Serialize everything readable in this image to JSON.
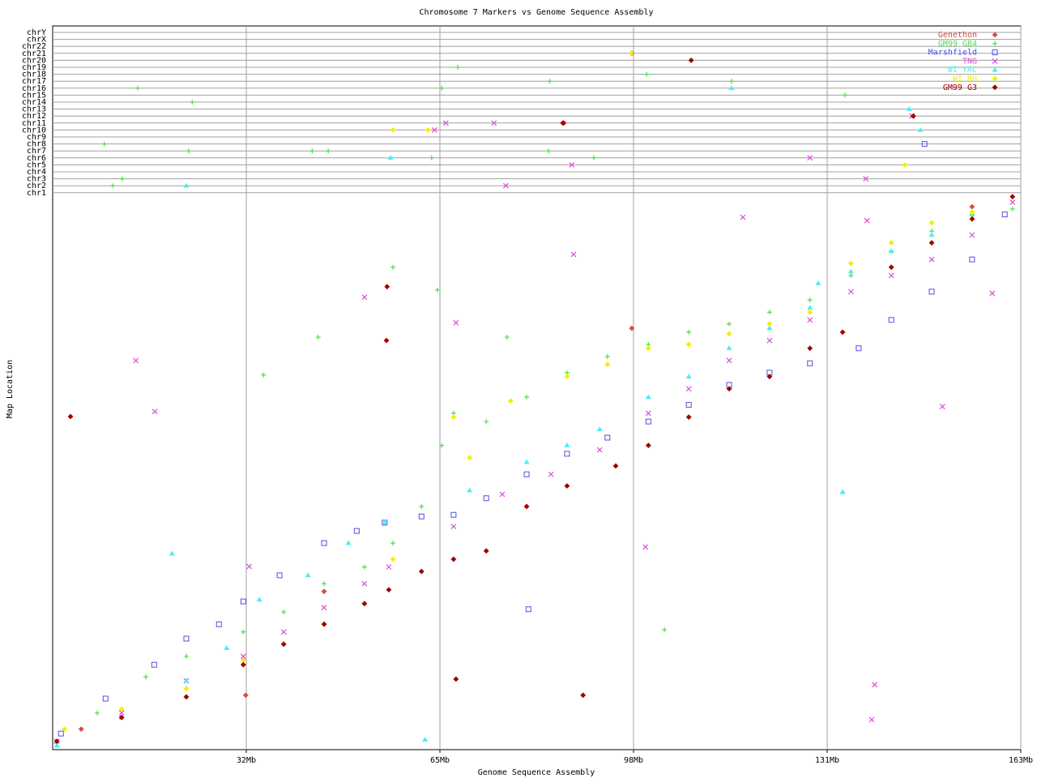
{
  "chart_data": {
    "type": "scatter",
    "title": "Chromosome 7 Markers vs Genome Sequence Assembly",
    "x_label": "Genome Sequence Assembly",
    "y_label": "Map Location",
    "xlim": [
      0,
      163
    ],
    "xticks": [
      {
        "value": 32.6,
        "label": "32Mb"
      },
      {
        "value": 65.2,
        "label": "65Mb"
      },
      {
        "value": 97.8,
        "label": "98Mb"
      },
      {
        "value": 130.4,
        "label": "131Mb"
      },
      {
        "value": 163,
        "label": "163Mb"
      }
    ],
    "ylim": [
      0,
      100
    ],
    "chromosomes": [
      "chrY",
      "chrX",
      "chr22",
      "chr21",
      "chr20",
      "chr19",
      "chr18",
      "chr17",
      "chr16",
      "chr15",
      "chr14",
      "chr13",
      "chr12",
      "chr11",
      "chr10",
      "chr9",
      "chr8",
      "chr7",
      "chr6",
      "chr5",
      "chr4",
      "chr3",
      "chr2",
      "chr1"
    ],
    "grid": true,
    "legend": "top-right",
    "series": [
      {
        "name": "Genethon",
        "color": "#e04848",
        "marker": "diamond",
        "x": [
          4.8,
          45.7,
          97.5,
          154.8,
          32.5
        ],
        "values": [
          3.7,
          28.5,
          75.9,
          97.8,
          9.8
        ],
        "off_x": [
          97.5,
          86.1
        ],
        "off_chr": [
          3,
          13
        ]
      },
      {
        "name": "GM99 GB4",
        "color": "#48e048",
        "marker": "plus",
        "x": [
          0.7,
          7.5,
          15.7,
          22.5,
          32.1,
          38.9,
          45.7,
          52.5,
          57.3,
          62.1,
          65.5,
          67.5,
          73.0,
          79.8,
          86.6,
          93.4,
          100.3,
          107.1,
          113.9,
          120.7,
          127.5,
          134.4,
          141.2,
          148.0,
          154.8,
          161.6,
          57.3,
          35.5,
          64.8,
          103.0,
          44.7,
          76.5
        ],
        "values": [
          1.5,
          6.6,
          13.1,
          16.8,
          21.2,
          24.8,
          29.9,
          32.9,
          37.2,
          43.8,
          54.8,
          60.6,
          59.1,
          63.5,
          67.9,
          70.8,
          73.0,
          75.2,
          76.7,
          78.8,
          81.0,
          85.4,
          89.8,
          93.4,
          96.4,
          97.4,
          86.9,
          67.5,
          82.8,
          21.6,
          74.3,
          74.3
        ],
        "off_x": [
          14.3,
          8.7,
          10.1,
          11.7,
          23.5,
          22.9,
          43.7,
          46.4,
          65.5,
          68.2,
          63.8,
          83.7,
          83.5,
          100.0,
          114.3,
          133.4,
          91.1
        ],
        "off_chr": [
          8,
          16,
          22,
          21,
          10,
          17,
          17,
          17,
          8,
          5,
          18,
          7,
          17,
          6,
          7,
          9,
          18
        ]
      },
      {
        "name": "Marshfield",
        "color": "#5050e0",
        "marker": "square",
        "x": [
          1.4,
          8.9,
          17.1,
          22.5,
          28.0,
          32.1,
          38.2,
          45.7,
          51.2,
          55.9,
          62.1,
          67.5,
          73.0,
          79.8,
          86.6,
          93.4,
          100.3,
          107.1,
          113.9,
          120.7,
          127.5,
          135.7,
          141.2,
          148.0,
          154.8,
          160.3,
          80.1
        ],
        "values": [
          2.9,
          9.2,
          15.3,
          20.0,
          22.6,
          26.7,
          31.4,
          37.2,
          39.4,
          40.9,
          42.0,
          42.3,
          45.3,
          49.6,
          53.3,
          56.2,
          59.1,
          62.1,
          65.7,
          67.9,
          69.6,
          72.3,
          77.4,
          82.5,
          88.3,
          96.4,
          25.3
        ],
        "off_x": [
          146.8
        ],
        "off_chr": [
          16
        ]
      },
      {
        "name": "TNG",
        "color": "#e048e0",
        "marker": "cross",
        "x": [
          0.7,
          11.6,
          22.5,
          32.1,
          38.9,
          45.7,
          52.5,
          56.6,
          67.5,
          75.7,
          83.9,
          92.1,
          100.3,
          107.1,
          113.9,
          120.7,
          127.5,
          134.4,
          141.2,
          148.0,
          154.8,
          161.6,
          14.0,
          17.2,
          52.5,
          87.7,
          116.2,
          137.1,
          158.2,
          149.8,
          138.4,
          137.9,
          33.1,
          67.9,
          99.8
        ],
        "values": [
          1.5,
          6.6,
          12.4,
          16.8,
          21.2,
          25.6,
          29.9,
          32.9,
          40.2,
          46.0,
          49.6,
          54.0,
          60.6,
          65.0,
          70.1,
          73.7,
          77.4,
          82.5,
          85.4,
          88.3,
          92.7,
          98.6,
          70.1,
          60.9,
          81.5,
          89.2,
          95.9,
          95.3,
          82.2,
          61.8,
          11.7,
          5.4,
          33.0,
          76.9,
          36.5
        ],
        "off_x": [
          66.2,
          74.3,
          76.3,
          87.4,
          127.5,
          136.9,
          144.7,
          64.3
        ],
        "off_chr": [
          13,
          13,
          22,
          19,
          18,
          21,
          12,
          14
        ]
      },
      {
        "name": "WI YAC",
        "color": "#48f0f0",
        "marker": "triangle",
        "x": [
          0.7,
          11.6,
          22.5,
          29.3,
          34.8,
          43.0,
          49.8,
          55.9,
          70.2,
          79.8,
          86.6,
          92.1,
          100.3,
          107.1,
          113.9,
          120.7,
          127.5,
          128.9,
          134.4,
          141.2,
          148.0,
          154.8,
          20.1,
          133.0,
          62.7
        ],
        "values": [
          0.7,
          5.8,
          12.4,
          18.3,
          27.0,
          31.4,
          37.2,
          40.9,
          46.7,
          51.8,
          54.8,
          57.7,
          63.5,
          67.2,
          72.3,
          75.9,
          79.6,
          84.0,
          86.1,
          89.8,
          92.7,
          96.4,
          35.3,
          46.4,
          1.8
        ],
        "off_x": [
          22.5,
          56.9,
          144.2,
          146.1,
          114.3
        ],
        "off_chr": [
          22,
          18,
          11,
          14,
          8
        ]
      },
      {
        "name": "WI RH",
        "color": "#f0f000",
        "marker": "diamond",
        "x": [
          2.0,
          11.6,
          22.5,
          32.1,
          38.9,
          45.7,
          52.5,
          57.3,
          67.5,
          70.2,
          77.1,
          86.6,
          93.4,
          100.3,
          107.1,
          113.9,
          120.7,
          127.5,
          134.4,
          141.2,
          148.0,
          154.8
        ],
        "values": [
          3.7,
          7.3,
          11.0,
          16.1,
          19.0,
          22.6,
          26.3,
          34.3,
          59.9,
          52.6,
          62.8,
          67.2,
          69.4,
          72.3,
          73.0,
          74.9,
          76.7,
          78.8,
          87.6,
          91.3,
          94.9,
          96.8
        ],
        "off_x": [
          57.3,
          63.2,
          143.5,
          97.4
        ],
        "off_chr": [
          14,
          14,
          19,
          3
        ]
      },
      {
        "name": "GM99 G3",
        "color": "#a00000",
        "marker": "diamond",
        "x": [
          0.7,
          11.6,
          22.5,
          32.1,
          38.9,
          45.7,
          52.5,
          56.6,
          62.1,
          67.5,
          73.0,
          79.8,
          86.6,
          94.8,
          100.3,
          107.1,
          113.9,
          120.7,
          127.5,
          133.0,
          141.2,
          148.0,
          154.8,
          161.6,
          3.0,
          56.3,
          56.2,
          67.9,
          89.3
        ],
        "values": [
          1.5,
          5.8,
          9.5,
          15.3,
          19.0,
          22.6,
          26.3,
          28.8,
          32.1,
          34.3,
          35.8,
          43.8,
          47.5,
          51.1,
          54.8,
          59.9,
          65.0,
          67.2,
          72.3,
          75.2,
          86.9,
          91.3,
          95.6,
          99.6,
          60.0,
          83.4,
          73.7,
          12.7,
          9.8
        ],
        "off_x": [
          107.5,
          144.9,
          85.9
        ],
        "off_chr": [
          4,
          12,
          13
        ]
      }
    ]
  }
}
